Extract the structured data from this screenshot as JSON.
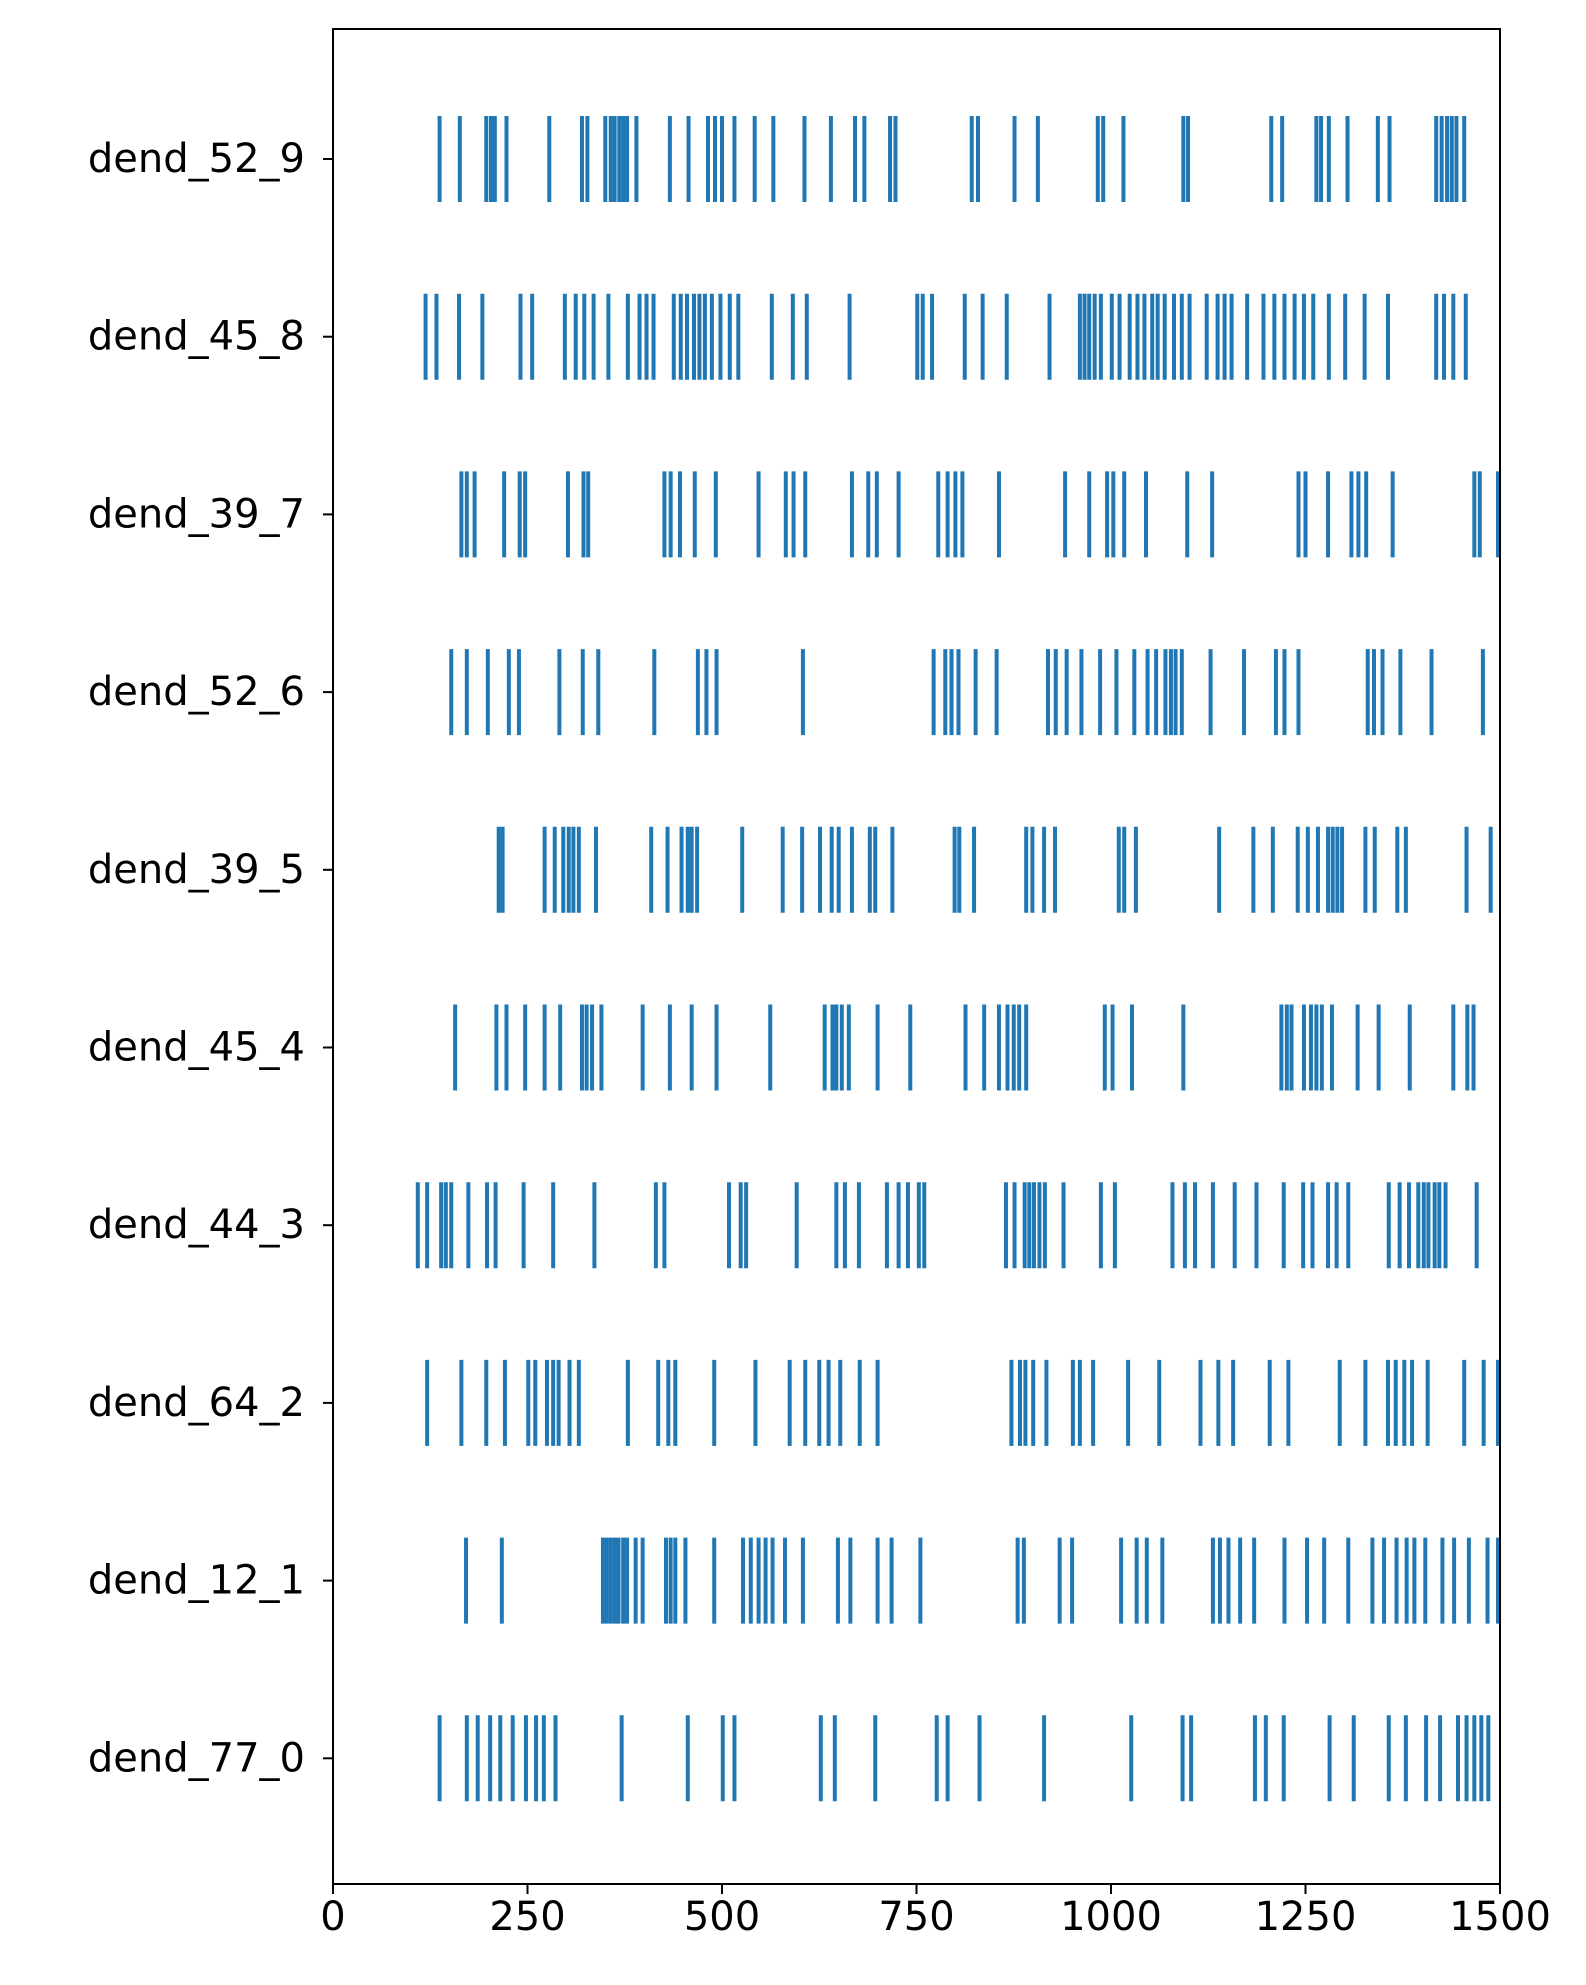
{
  "colors": {
    "spike": "#1f77b4",
    "axis": "#000000",
    "background": "#ffffff"
  },
  "chart_data": {
    "type": "eventplot",
    "title": "",
    "xlabel": "",
    "ylabel": "",
    "xlim": [
      0,
      1500
    ],
    "x_ticks": [
      0,
      250,
      500,
      750,
      1000,
      1250,
      1500
    ],
    "grid": false,
    "legend": "none",
    "rows": [
      {
        "label": "dend_52_9",
        "events": [
          137,
          163,
          197,
          203,
          208,
          223,
          278,
          320,
          327,
          350,
          357,
          362,
          368,
          373,
          378,
          390,
          433,
          457,
          482,
          491,
          500,
          516,
          542,
          566,
          606,
          640,
          671,
          683,
          716,
          723,
          821,
          829,
          876,
          906,
          983,
          990,
          1016,
          1093,
          1099,
          1206,
          1220,
          1264,
          1270,
          1280,
          1304,
          1343,
          1358,
          1418,
          1425,
          1432,
          1438,
          1444,
          1454
        ]
      },
      {
        "label": "dend_45_8",
        "events": [
          119,
          133,
          162,
          192,
          241,
          256,
          298,
          312,
          323,
          335,
          354,
          379,
          394,
          403,
          412,
          438,
          447,
          455,
          464,
          471,
          478,
          487,
          498,
          510,
          521,
          564,
          591,
          609,
          664,
          751,
          758,
          770,
          812,
          835,
          866,
          921,
          960,
          966,
          972,
          979,
          987,
          1001,
          1011,
          1024,
          1034,
          1043,
          1053,
          1060,
          1069,
          1081,
          1091,
          1101,
          1123,
          1137,
          1146,
          1155,
          1175,
          1196,
          1210,
          1223,
          1236,
          1248,
          1260,
          1280,
          1301,
          1326,
          1356,
          1418,
          1428,
          1440,
          1456
        ]
      },
      {
        "label": "dend_39_7",
        "events": [
          165,
          172,
          182,
          220,
          240,
          247,
          302,
          322,
          328,
          426,
          434,
          446,
          465,
          492,
          547,
          582,
          592,
          607,
          667,
          688,
          699,
          727,
          778,
          790,
          800,
          809,
          856,
          941,
          972,
          995,
          1003,
          1017,
          1045,
          1098,
          1130,
          1241,
          1250,
          1279,
          1309,
          1318,
          1328,
          1362,
          1467,
          1474,
          1500
        ]
      },
      {
        "label": "dend_52_6",
        "events": [
          152,
          172,
          199,
          226,
          239,
          291,
          321,
          341,
          413,
          469,
          480,
          493,
          604,
          772,
          787,
          795,
          804,
          826,
          853,
          919,
          929,
          943,
          962,
          986,
          1007,
          1030,
          1047,
          1058,
          1070,
          1077,
          1083,
          1091,
          1128,
          1171,
          1212,
          1223,
          1241,
          1330,
          1338,
          1349,
          1372,
          1412,
          1478
        ]
      },
      {
        "label": "dend_39_5",
        "events": [
          213,
          218,
          272,
          285,
          296,
          303,
          309,
          316,
          338,
          409,
          430,
          448,
          456,
          461,
          468,
          526,
          578,
          603,
          626,
          641,
          650,
          667,
          690,
          697,
          719,
          799,
          805,
          824,
          891,
          899,
          914,
          928,
          1010,
          1017,
          1032,
          1139,
          1183,
          1208,
          1240,
          1253,
          1266,
          1279,
          1285,
          1291,
          1297,
          1327,
          1339,
          1368,
          1379,
          1457,
          1488
        ]
      },
      {
        "label": "dend_45_4",
        "events": [
          157,
          210,
          223,
          247,
          272,
          292,
          320,
          326,
          333,
          345,
          398,
          433,
          461,
          493,
          562,
          632,
          642,
          647,
          654,
          663,
          700,
          742,
          813,
          837,
          856,
          867,
          875,
          882,
          891,
          992,
          1002,
          1027,
          1093,
          1219,
          1226,
          1232,
          1248,
          1257,
          1264,
          1271,
          1284,
          1317,
          1344,
          1384,
          1440,
          1458,
          1466
        ]
      },
      {
        "label": "dend_44_3",
        "events": [
          109,
          121,
          139,
          145,
          152,
          174,
          198,
          209,
          245,
          283,
          336,
          415,
          426,
          509,
          524,
          531,
          596,
          647,
          658,
          676,
          712,
          727,
          739,
          753,
          760,
          865,
          876,
          889,
          895,
          901,
          908,
          915,
          939,
          987,
          1005,
          1079,
          1095,
          1108,
          1131,
          1159,
          1187,
          1222,
          1247,
          1259,
          1279,
          1290,
          1305,
          1357,
          1371,
          1383,
          1395,
          1402,
          1408,
          1416,
          1422,
          1430,
          1470
        ]
      },
      {
        "label": "dend_64_2",
        "events": [
          121,
          165,
          197,
          221,
          251,
          260,
          275,
          283,
          290,
          304,
          316,
          379,
          418,
          431,
          440,
          490,
          543,
          587,
          607,
          625,
          637,
          652,
          677,
          700,
          872,
          883,
          890,
          900,
          917,
          951,
          960,
          977,
          1022,
          1062,
          1115,
          1138,
          1157,
          1204,
          1228,
          1294,
          1327,
          1356,
          1366,
          1377,
          1387,
          1407,
          1454,
          1479,
          1500
        ]
      },
      {
        "label": "dend_12_1",
        "events": [
          171,
          217,
          347,
          352,
          357,
          362,
          367,
          373,
          378,
          389,
          398,
          428,
          434,
          440,
          453,
          490,
          527,
          537,
          547,
          556,
          565,
          581,
          604,
          649,
          665,
          700,
          718,
          755,
          880,
          888,
          934,
          950,
          1013,
          1033,
          1046,
          1066,
          1131,
          1140,
          1151,
          1166,
          1184,
          1223,
          1252,
          1274,
          1305,
          1336,
          1351,
          1367,
          1380,
          1390,
          1404,
          1426,
          1441,
          1460,
          1484,
          1500
        ]
      },
      {
        "label": "dend_77_0",
        "events": [
          137,
          172,
          186,
          202,
          215,
          231,
          248,
          261,
          271,
          286,
          371,
          456,
          501,
          516,
          627,
          645,
          697,
          776,
          790,
          831,
          914,
          1026,
          1092,
          1103,
          1185,
          1199,
          1222,
          1281,
          1312,
          1357,
          1379,
          1405,
          1423,
          1446,
          1457,
          1467,
          1476,
          1485
        ]
      }
    ]
  }
}
